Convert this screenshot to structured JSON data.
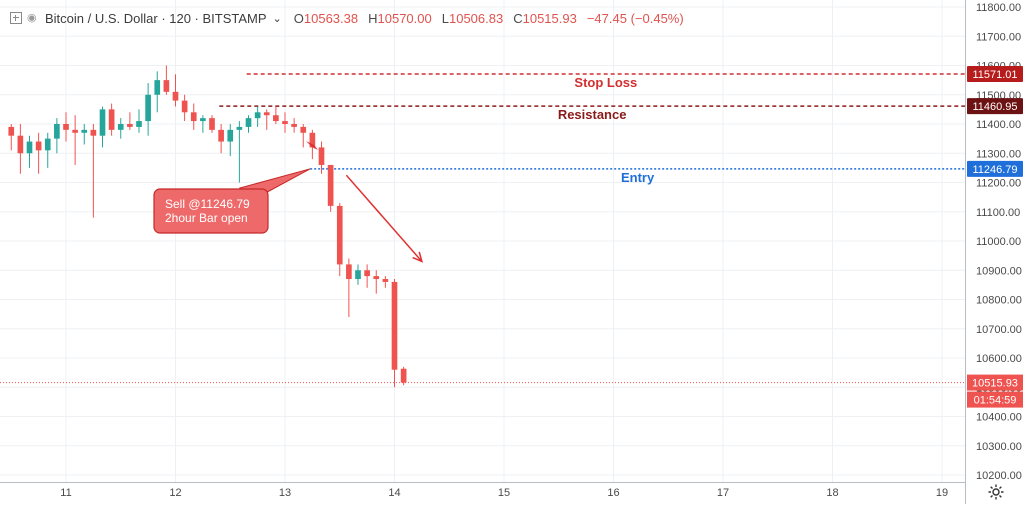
{
  "header": {
    "symbol": "Bitcoin / U.S. Dollar · 120 · BITSTAMP",
    "chevron_icon": "chevron-down-icon",
    "open_label": "O",
    "open": "10563.38",
    "high_label": "H",
    "high": "10570.00",
    "low_label": "L",
    "low": "10506.83",
    "close_label": "C",
    "close": "10515.93",
    "change": "−47.45 (−0.45%)"
  },
  "chart_data": {
    "type": "candlestick",
    "title": "Bitcoin / U.S. Dollar · 120 · BITSTAMP",
    "ylim": [
      10200,
      11800
    ],
    "y_ticks": [
      10200,
      10300,
      10400,
      10500,
      10600,
      10700,
      10800,
      10900,
      11000,
      11100,
      11200,
      11300,
      11400,
      11500,
      11600,
      11700,
      11800
    ],
    "x_ticks": [
      {
        "label": "11",
        "day": 11
      },
      {
        "label": "12",
        "day": 12
      },
      {
        "label": "13",
        "day": 13
      },
      {
        "label": "14",
        "day": 14
      },
      {
        "label": "15",
        "day": 15
      },
      {
        "label": "16",
        "day": 16
      },
      {
        "label": "17",
        "day": 17
      },
      {
        "label": "18",
        "day": 18
      },
      {
        "label": "19",
        "day": 19
      }
    ],
    "bar_interval_hours": 2,
    "first_bar_day": 10.5,
    "candles": [
      [
        11390,
        11400,
        11310,
        11360
      ],
      [
        11360,
        11400,
        11230,
        11300
      ],
      [
        11300,
        11360,
        11250,
        11340
      ],
      [
        11340,
        11370,
        11230,
        11310
      ],
      [
        11310,
        11370,
        11250,
        11350
      ],
      [
        11350,
        11420,
        11300,
        11400
      ],
      [
        11400,
        11440,
        11340,
        11380
      ],
      [
        11380,
        11430,
        11260,
        11370
      ],
      [
        11370,
        11400,
        11330,
        11380
      ],
      [
        11380,
        11400,
        11080,
        11360
      ],
      [
        11360,
        11460,
        11320,
        11450
      ],
      [
        11450,
        11470,
        11360,
        11380
      ],
      [
        11380,
        11420,
        11350,
        11400
      ],
      [
        11400,
        11440,
        11380,
        11390
      ],
      [
        11390,
        11450,
        11370,
        11410
      ],
      [
        11410,
        11540,
        11360,
        11500
      ],
      [
        11500,
        11580,
        11440,
        11550
      ],
      [
        11550,
        11600,
        11500,
        11510
      ],
      [
        11510,
        11570,
        11460,
        11480
      ],
      [
        11480,
        11500,
        11410,
        11440
      ],
      [
        11440,
        11470,
        11380,
        11410
      ],
      [
        11410,
        11430,
        11370,
        11420
      ],
      [
        11420,
        11430,
        11370,
        11380
      ],
      [
        11380,
        11400,
        11300,
        11340
      ],
      [
        11340,
        11400,
        11290,
        11380
      ],
      [
        11380,
        11410,
        11200,
        11390
      ],
      [
        11390,
        11430,
        11370,
        11420
      ],
      [
        11420,
        11460,
        11390,
        11440
      ],
      [
        11440,
        11450,
        11380,
        11430
      ],
      [
        11430,
        11460,
        11400,
        11410
      ],
      [
        11410,
        11440,
        11370,
        11400
      ],
      [
        11400,
        11420,
        11370,
        11390
      ],
      [
        11390,
        11400,
        11320,
        11370
      ],
      [
        11370,
        11380,
        11280,
        11320
      ],
      [
        11320,
        11340,
        11230,
        11260
      ],
      [
        11260,
        11260,
        11100,
        11120
      ],
      [
        11120,
        11130,
        10880,
        10920
      ],
      [
        10920,
        10940,
        10740,
        10870
      ],
      [
        10870,
        10920,
        10850,
        10900
      ],
      [
        10900,
        10920,
        10840,
        10880
      ],
      [
        10880,
        10900,
        10820,
        10870
      ],
      [
        10870,
        10880,
        10840,
        10860
      ],
      [
        10860,
        10870,
        10500,
        10560
      ],
      [
        10563.38,
        10570,
        10506.83,
        10515.93
      ]
    ],
    "price_lines": [
      {
        "name": "Stop Loss",
        "value": 11571.01,
        "price_label": "11571.01",
        "color": "#d32f2f",
        "badge_color": "#b71c1c",
        "style": "dashed"
      },
      {
        "name": "Resistance",
        "value": 11460.95,
        "price_label": "11460.95",
        "color": "#8b1a1a",
        "badge_color": "#6d1212",
        "style": "dashed"
      },
      {
        "name": "Entry",
        "value": 11246.79,
        "price_label": "11246.79",
        "color": "#1e6fd9",
        "badge_color": "#1e6fd9",
        "style": "dotted"
      }
    ],
    "last_price": {
      "value": 10515.93,
      "price_label": "10515.93",
      "countdown": "01:54:59",
      "color": "#ef5350"
    },
    "annotation": {
      "lines": [
        "Sell @11246.79",
        "2hour Bar open"
      ],
      "color": "#ee6a6a",
      "border": "#c62828"
    },
    "colors": {
      "up": "#26a69a",
      "down": "#ef5350",
      "grid": "#eef0f3",
      "axis_text": "#4a4a4a",
      "arrow": "#e03030"
    }
  }
}
